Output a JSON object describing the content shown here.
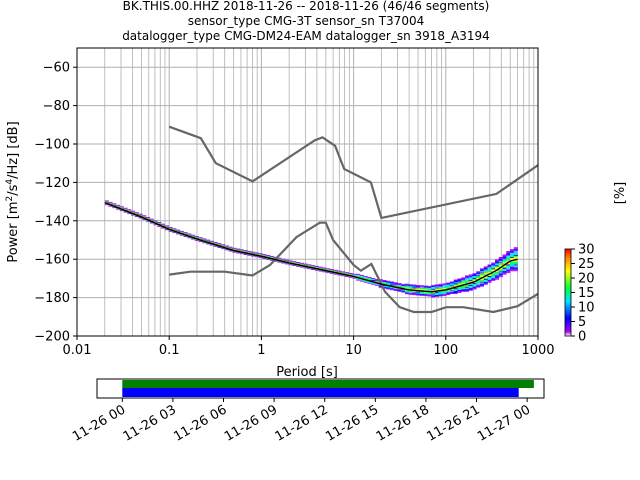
{
  "title_lines": [
    "BK.THIS.00.HHZ   2018-11-26 -- 2018-11-26  (46/46 segments)",
    "sensor_type CMG-3T sensor_sn T37004",
    "datalogger_type CMG-DM24-EAM datalogger_sn 3918_A3194"
  ],
  "chart_data": {
    "type": "heatmap",
    "xlabel": "Period [s]",
    "ylabel_parts": [
      "Power [m",
      "2",
      "/s",
      "4",
      "/Hz] [dB]"
    ],
    "x_scale": "log",
    "xlim": [
      0.01,
      1000
    ],
    "ylim": [
      -200,
      -50
    ],
    "x_ticks": [
      0.01,
      0.1,
      1,
      10,
      100,
      1000
    ],
    "x_tick_labels": [
      "0.01",
      "0.1",
      "1",
      "10",
      "100",
      "1000"
    ],
    "y_ticks": [
      -200,
      -180,
      -160,
      -140,
      -120,
      -100,
      -80,
      -60
    ],
    "y_tick_labels": [
      "−200",
      "−180",
      "−160",
      "−140",
      "−120",
      "−100",
      "−80",
      "−60"
    ],
    "grid": true,
    "noise_models": [
      {
        "points": [
          [
            0.1,
            -91
          ],
          [
            0.22,
            -97
          ],
          [
            0.32,
            -110
          ],
          [
            0.8,
            -119.5
          ],
          [
            3.8,
            -98
          ],
          [
            4.6,
            -96.5
          ],
          [
            6.3,
            -101
          ],
          [
            7.9,
            -113
          ],
          [
            15.4,
            -120
          ],
          [
            20,
            -138.5
          ],
          [
            354,
            -126
          ],
          [
            1000,
            -111
          ]
        ]
      },
      {
        "points": [
          [
            0.1,
            -168
          ],
          [
            0.17,
            -166.5
          ],
          [
            0.4,
            -166.5
          ],
          [
            0.8,
            -168.5
          ],
          [
            1.24,
            -163
          ],
          [
            2.4,
            -148.5
          ],
          [
            4.3,
            -141
          ],
          [
            5,
            -141
          ],
          [
            6,
            -150
          ],
          [
            10,
            -163
          ],
          [
            12,
            -166
          ],
          [
            15.6,
            -162.5
          ],
          [
            21.9,
            -177
          ],
          [
            31.6,
            -185
          ],
          [
            45,
            -187.5
          ],
          [
            70,
            -187.5
          ],
          [
            101,
            -185
          ],
          [
            154,
            -185
          ],
          [
            328,
            -187.5
          ],
          [
            600,
            -184.5
          ],
          [
            1000,
            -178
          ]
        ]
      }
    ],
    "psd_median": [
      [
        0.02,
        -130.5
      ],
      [
        0.05,
        -138
      ],
      [
        0.1,
        -144.5
      ],
      [
        0.2,
        -149.5
      ],
      [
        0.5,
        -155.5
      ],
      [
        1,
        -158.5
      ],
      [
        2,
        -162
      ],
      [
        5,
        -166
      ],
      [
        10,
        -169
      ],
      [
        20,
        -173
      ],
      [
        40,
        -176
      ],
      [
        70,
        -177
      ],
      [
        100,
        -176
      ],
      [
        200,
        -172
      ],
      [
        350,
        -166
      ],
      [
        500,
        -161
      ],
      [
        600,
        -160
      ]
    ],
    "psd_spread": [
      [
        0.02,
        0.7
      ],
      [
        0.5,
        0.8
      ],
      [
        5,
        0.8
      ],
      [
        10,
        1.2
      ],
      [
        20,
        1.8
      ],
      [
        50,
        2.5
      ],
      [
        100,
        3
      ],
      [
        200,
        4
      ],
      [
        400,
        5
      ],
      [
        600,
        6
      ]
    ],
    "colorbar": {
      "label": "[%]",
      "range": [
        0,
        30
      ],
      "ticks": [
        0,
        5,
        10,
        15,
        20,
        25,
        30
      ],
      "tick_labels": [
        "0",
        "5",
        "10",
        "15",
        "20",
        "25",
        "30"
      ]
    },
    "timeline": {
      "range": [
        "2018-11-25 22:30",
        "2018-11-27 01:00"
      ],
      "tick_labels": [
        "11-26 00",
        "11-26 03",
        "11-26 06",
        "11-26 09",
        "11-26 12",
        "11-26 15",
        "11-26 18",
        "11-26 21",
        "11-27 00"
      ],
      "tick_hours": [
        0,
        3,
        6,
        9,
        12,
        15,
        18,
        21,
        24
      ],
      "bars": [
        {
          "color": "#008000",
          "start_hour": 0,
          "end_hour": 24.4
        },
        {
          "color": "#0000ff",
          "start_hour": 0,
          "end_hour": 23.5
        }
      ]
    }
  },
  "colors": {
    "noise_model": "#666666",
    "median": "#000000",
    "grid": "#b0b0b0"
  }
}
